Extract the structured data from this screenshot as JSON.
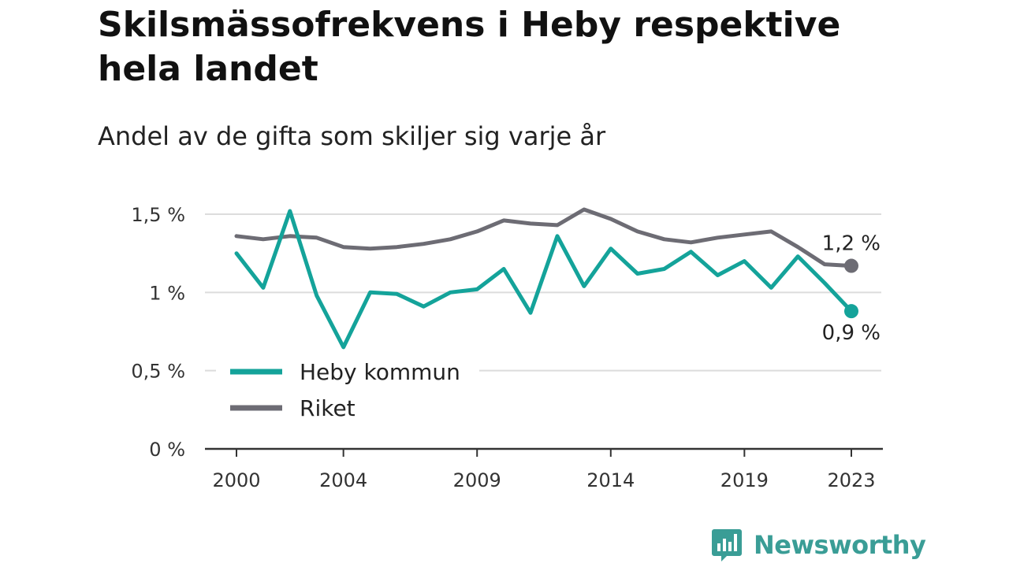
{
  "chart_data": {
    "type": "line",
    "title": "Skilsmässofrekvens i Heby respektive hela landet",
    "subtitle": "Andel av de gifta som skiljer sig varje år",
    "x": [
      2000,
      2001,
      2002,
      2003,
      2004,
      2005,
      2006,
      2007,
      2008,
      2009,
      2010,
      2011,
      2012,
      2013,
      2014,
      2015,
      2016,
      2017,
      2018,
      2019,
      2020,
      2021,
      2022,
      2023
    ],
    "x_ticks": [
      2000,
      2004,
      2009,
      2014,
      2019,
      2023
    ],
    "x_tick_labels": [
      "2000",
      "2004",
      "2009",
      "2014",
      "2019",
      "2023"
    ],
    "ylim": [
      0,
      1.5
    ],
    "y_ticks": [
      0,
      0.5,
      1,
      1.5
    ],
    "y_tick_labels": [
      "0 %",
      "0,5 %",
      "1 %",
      "1,5 %"
    ],
    "grid": true,
    "legend_position": "bottom-left",
    "series": [
      {
        "name": "Heby kommun",
        "color": "#14a39a",
        "values": [
          1.25,
          1.03,
          1.52,
          0.98,
          0.65,
          1.0,
          0.99,
          0.91,
          1.0,
          1.02,
          1.15,
          0.87,
          1.36,
          1.04,
          1.28,
          1.12,
          1.15,
          1.26,
          1.11,
          1.2,
          1.03,
          1.23,
          1.06,
          0.88
        ],
        "end_label": "0,9 %"
      },
      {
        "name": "Riket",
        "color": "#6d6c74",
        "values": [
          1.36,
          1.34,
          1.36,
          1.35,
          1.29,
          1.28,
          1.29,
          1.31,
          1.34,
          1.39,
          1.46,
          1.44,
          1.43,
          1.53,
          1.47,
          1.39,
          1.34,
          1.32,
          1.35,
          1.37,
          1.39,
          1.29,
          1.18,
          1.17
        ],
        "end_label": "1,2 %"
      }
    ]
  },
  "brand": {
    "name": "Newsworthy",
    "color": "#3a9d96",
    "icon": "bar-chart-speech-bubble-icon"
  }
}
